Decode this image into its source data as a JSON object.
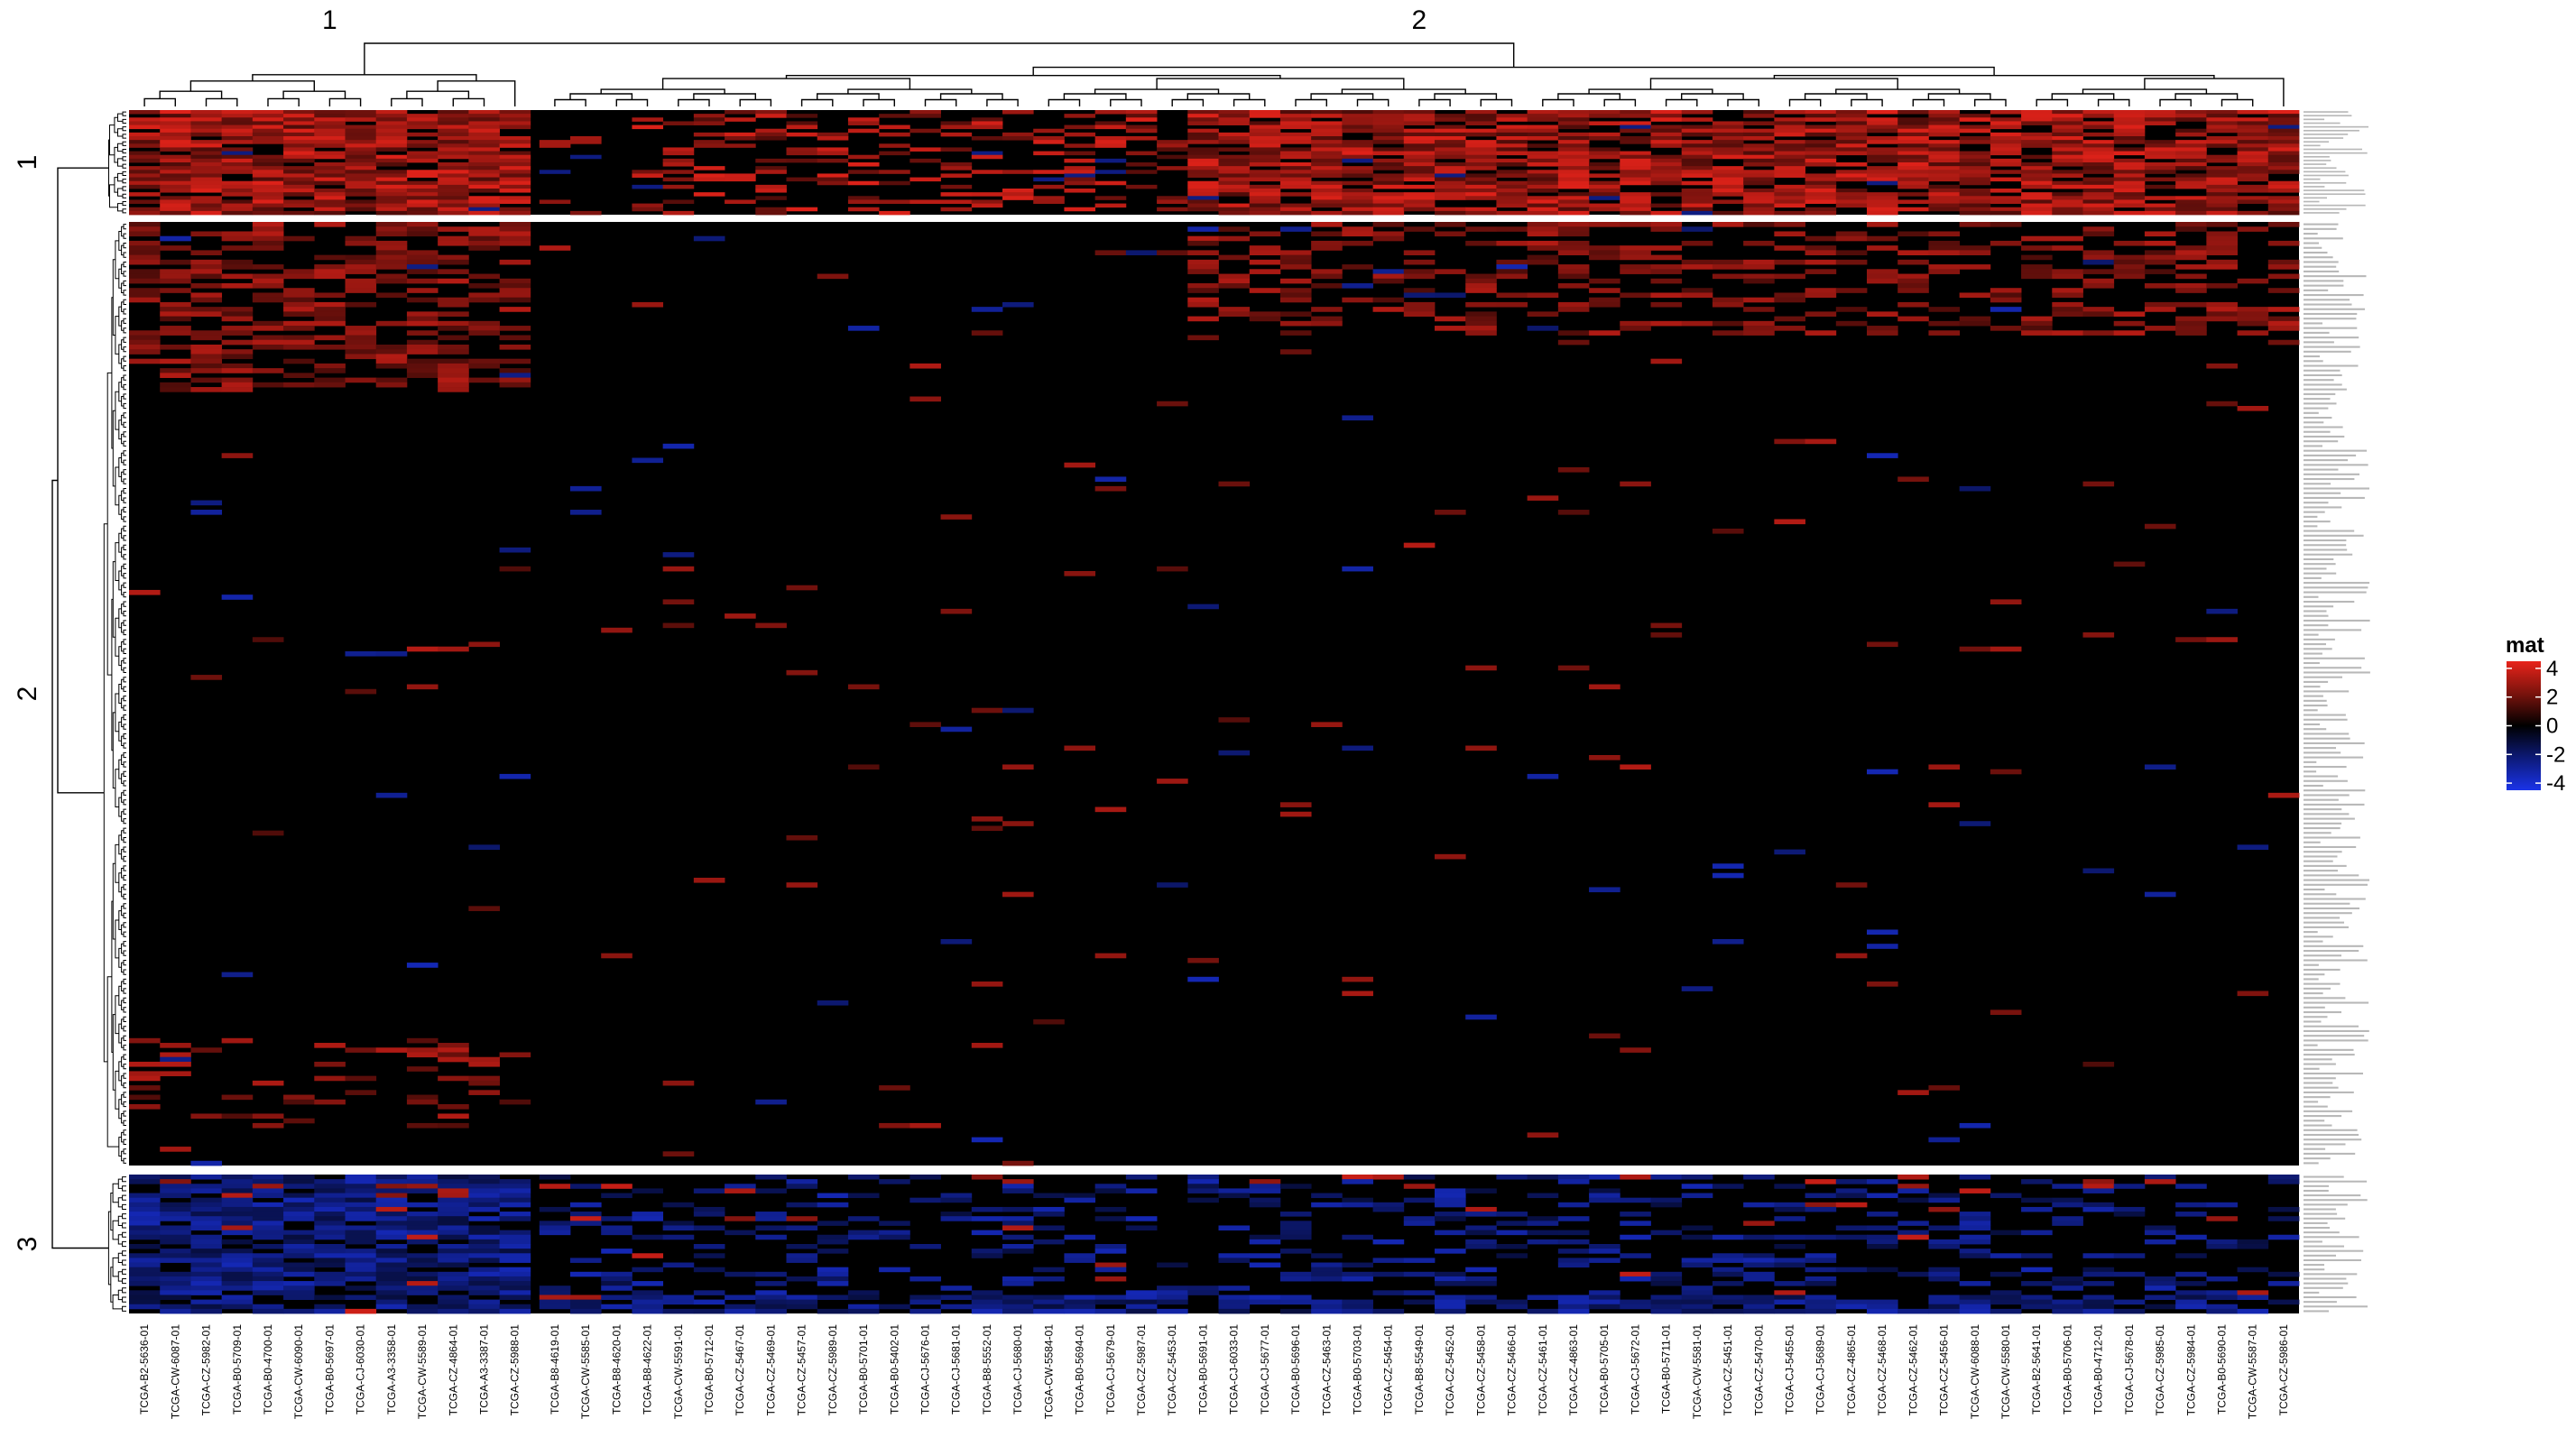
{
  "chart_data": {
    "type": "heatmap",
    "title": "",
    "xlabel": "",
    "ylabel": "",
    "column_split": [
      {
        "label": "1",
        "samples": [
          "TCGA-B2-5636-01",
          "TCGA-CW-6087-01",
          "TCGA-CZ-5982-01",
          "TCGA-B0-5709-01",
          "TCGA-B0-4700-01",
          "TCGA-CW-6090-01",
          "TCGA-B0-5697-01",
          "TCGA-CJ-6030-01",
          "TCGA-A3-3358-01",
          "TCGA-CW-5589-01",
          "TCGA-CZ-4864-01",
          "TCGA-A3-3387-01",
          "TCGA-CZ-5988-01"
        ]
      },
      {
        "label": "2",
        "samples": [
          "TCGA-B8-4619-01",
          "TCGA-CW-5585-01",
          "TCGA-B8-4620-01",
          "TCGA-B8-4622-01",
          "TCGA-CW-5591-01",
          "TCGA-B0-5712-01",
          "TCGA-CZ-5467-01",
          "TCGA-CZ-5469-01",
          "TCGA-CZ-5457-01",
          "TCGA-CZ-5989-01",
          "TCGA-B0-5701-01",
          "TCGA-B0-5402-01",
          "TCGA-CJ-5676-01",
          "TCGA-CJ-5681-01",
          "TCGA-B8-5552-01",
          "TCGA-CJ-5680-01",
          "TCGA-CW-5584-01",
          "TCGA-B0-5694-01",
          "TCGA-CJ-5679-01",
          "TCGA-CZ-5987-01",
          "TCGA-CZ-5453-01",
          "TCGA-B0-5691-01",
          "TCGA-CJ-6033-01",
          "TCGA-CJ-5677-01",
          "TCGA-B0-5696-01",
          "TCGA-CZ-5463-01",
          "TCGA-B0-5703-01",
          "TCGA-CZ-5454-01",
          "TCGA-B8-5549-01",
          "TCGA-CZ-5452-01",
          "TCGA-CZ-5458-01",
          "TCGA-CZ-5466-01",
          "TCGA-CZ-5461-01",
          "TCGA-CZ-4863-01",
          "TCGA-B0-5705-01",
          "TCGA-CJ-5672-01",
          "TCGA-B0-5711-01",
          "TCGA-CW-5581-01",
          "TCGA-CZ-5451-01",
          "TCGA-CZ-5470-01",
          "TCGA-CJ-5455-01",
          "TCGA-CJ-5689-01",
          "TCGA-CZ-4865-01",
          "TCGA-CZ-5468-01",
          "TCGA-CZ-5462-01",
          "TCGA-CZ-5456-01",
          "TCGA-CW-6088-01",
          "TCGA-CW-5580-01",
          "TCGA-B2-5641-01",
          "TCGA-B0-5706-01",
          "TCGA-B0-4712-01",
          "TCGA-CJ-5678-01",
          "TCGA-CZ-5985-01",
          "TCGA-CZ-5984-01",
          "TCGA-B0-5690-01",
          "TCGA-CW-5587-01",
          "TCGA-CZ-5986-01"
        ]
      }
    ],
    "row_split": [
      {
        "label": "1",
        "rows": 28,
        "pattern": "mostly positive (red) in column group 1 and right part of group 2"
      },
      {
        "label": "2",
        "rows": 200,
        "pattern": "mostly near zero (black) with sparse red/blue cells"
      },
      {
        "label": "3",
        "rows": 30,
        "pattern": "mostly negative (blue) in column group 1"
      }
    ],
    "value_range": [
      -4.5,
      4.5
    ],
    "legend": {
      "title": "mat",
      "position": "right",
      "ticks": [
        "4",
        "2",
        "0",
        "-2",
        "-4"
      ],
      "tick_values": [
        4,
        2,
        0,
        -2,
        -4
      ],
      "colors": {
        "high": "#e8231a",
        "mid": "#000000",
        "low": "#1a33e8"
      }
    },
    "dendrograms": {
      "columns": true,
      "rows": true
    },
    "row_names_shown": true,
    "row_names_legible": false,
    "grid": false
  }
}
